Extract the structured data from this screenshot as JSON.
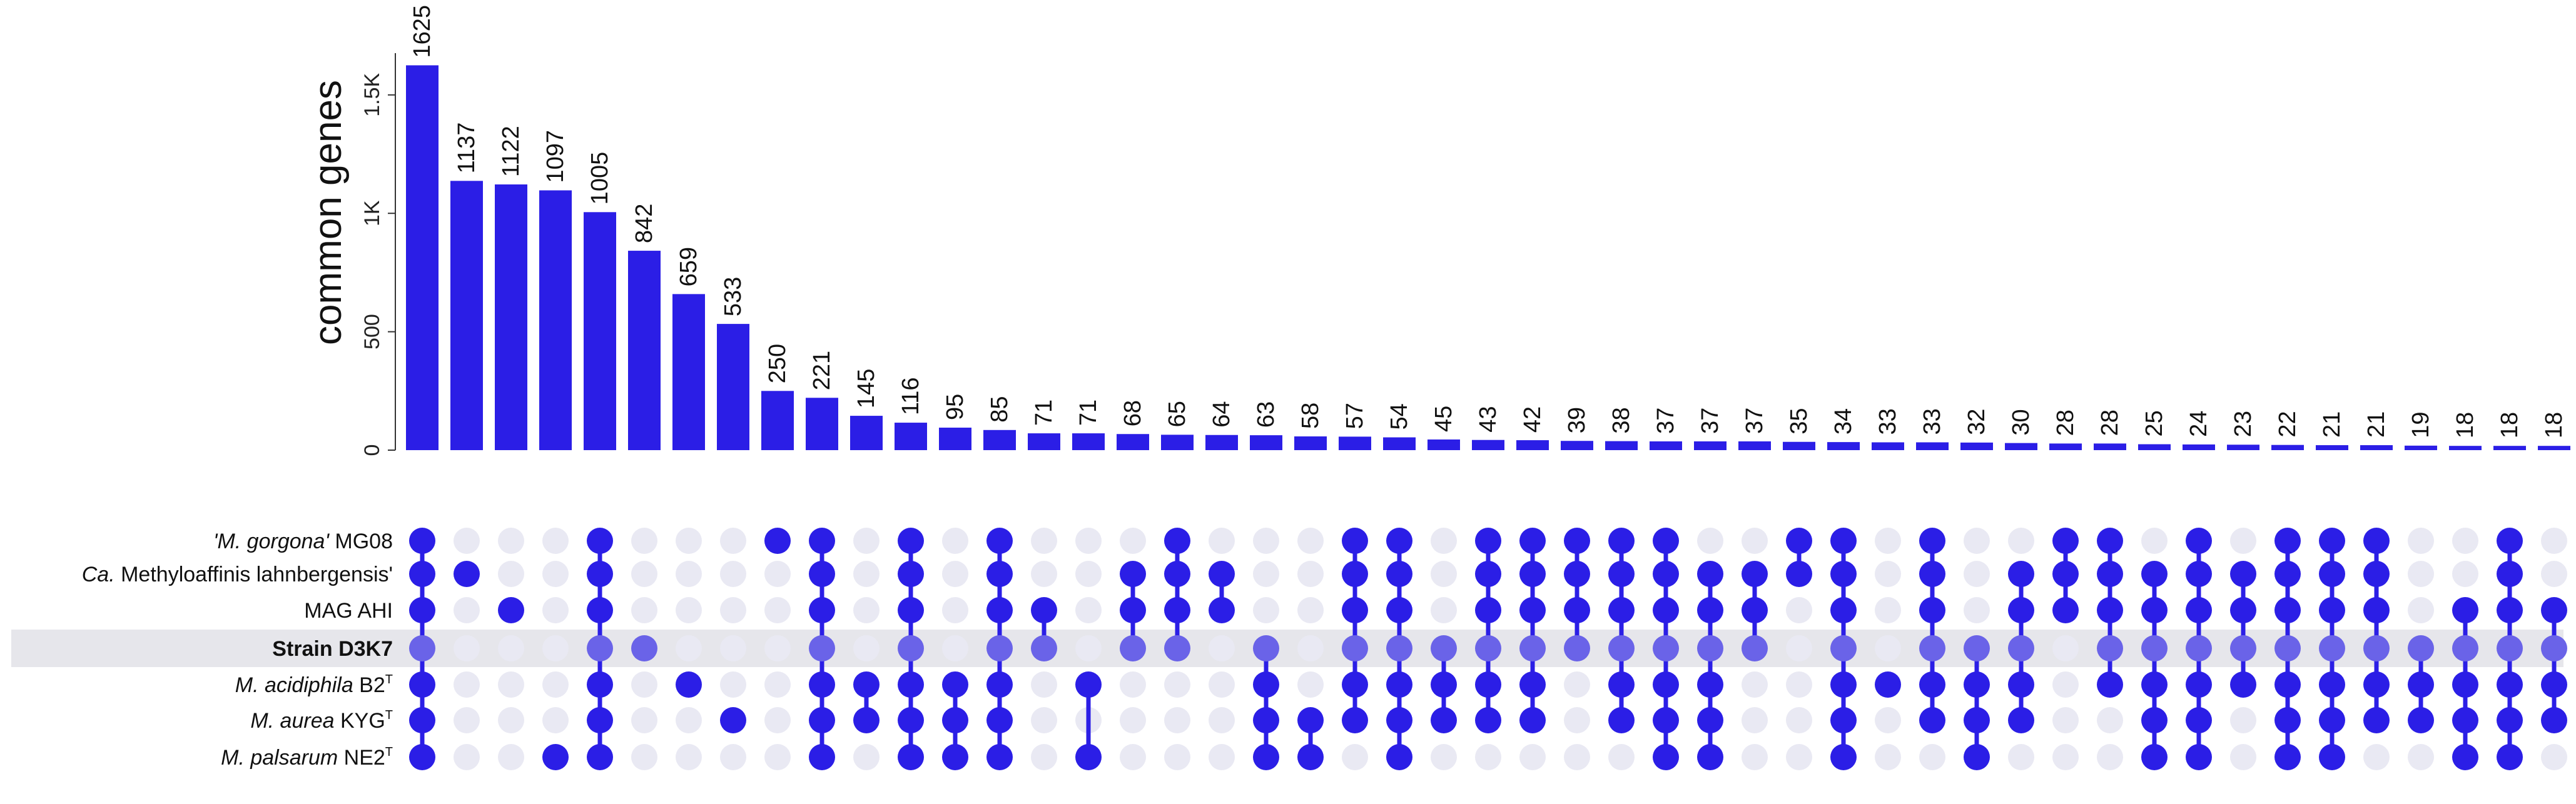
{
  "chart_data": {
    "type": "upset",
    "ylabel": "common genes",
    "ylim": [
      0,
      1650
    ],
    "y_ticks": [
      {
        "value": 0,
        "label": "0"
      },
      {
        "value": 500,
        "label": "500"
      },
      {
        "value": 1000,
        "label": "1K"
      },
      {
        "value": 1500,
        "label": "1.5K"
      }
    ],
    "bar_color": "#2b1ee6",
    "dot_active_color": "#2b1ee6",
    "dot_inactive_color": "#e9e9f3",
    "dot_highlight_active_color": "#6a63e8",
    "highlight_band_color": "#e6e6eb",
    "sets": [
      {
        "name_italic": "'M. gorgona'",
        "name_rest": " MG08",
        "sup": ""
      },
      {
        "name_italic": "Ca.",
        "name_rest": " Methyloaffinis lahnbergensis'",
        "sup": ""
      },
      {
        "name_italic": "",
        "name_rest": "MAG AHI",
        "sup": ""
      },
      {
        "name_italic": "",
        "name_rest": "Strain D3K7",
        "sup": "",
        "bold": true,
        "highlight": true
      },
      {
        "name_italic": "M. acidiphila",
        "name_rest": " B2",
        "sup": "T"
      },
      {
        "name_italic": "M. aurea",
        "name_rest": " KYG",
        "sup": "T"
      },
      {
        "name_italic": "M. palsarum",
        "name_rest": " NE2",
        "sup": "T"
      }
    ],
    "values": [
      1625,
      1137,
      1122,
      1097,
      1005,
      842,
      659,
      533,
      250,
      221,
      145,
      116,
      95,
      85,
      71,
      71,
      68,
      65,
      64,
      63,
      58,
      57,
      54,
      45,
      43,
      42,
      39,
      38,
      37,
      37,
      37,
      35,
      34,
      33,
      33,
      32,
      30,
      28,
      28,
      25,
      24,
      23,
      22,
      21,
      21,
      19,
      18,
      18,
      18
    ],
    "value_labels": [
      "1625",
      "1137",
      "1122",
      "1097",
      "1005",
      "842",
      "659",
      "533",
      "250",
      "221",
      "145",
      "116",
      "95",
      "85",
      "71",
      "71",
      "68",
      "65",
      "64",
      "63",
      "58",
      "57",
      "54",
      "45",
      "43",
      "42",
      "39",
      "38",
      "37",
      "37",
      "37",
      "35",
      "34",
      "33",
      "33",
      "32",
      "30",
      "28",
      "28",
      "25",
      "24",
      "23",
      "22",
      "21",
      "21",
      "19",
      "18",
      "18",
      "18"
    ],
    "intersections": [
      [
        0,
        1,
        2,
        3,
        4,
        5,
        6
      ],
      [
        1
      ],
      [
        2
      ],
      [
        6
      ],
      [
        0,
        1,
        2,
        3,
        4,
        5,
        6
      ],
      [
        3
      ],
      [
        4
      ],
      [
        5
      ],
      [
        0
      ],
      [
        0,
        1,
        2,
        3,
        4,
        5,
        6
      ],
      [
        4,
        5
      ],
      [
        0,
        1,
        2,
        3,
        4,
        5,
        6
      ],
      [
        4,
        5,
        6
      ],
      [
        0,
        1,
        2,
        3,
        4,
        5,
        6
      ],
      [
        2,
        3
      ],
      [
        4,
        6
      ],
      [
        1,
        2,
        3
      ],
      [
        0,
        1,
        2,
        3
      ],
      [
        1,
        2
      ],
      [
        3,
        4,
        5,
        6
      ],
      [
        5,
        6
      ],
      [
        0,
        1,
        2,
        3,
        4,
        5
      ],
      [
        0,
        1,
        2,
        3,
        4,
        5,
        6
      ],
      [
        3,
        4,
        5
      ],
      [
        0,
        1,
        2,
        3,
        4,
        5
      ],
      [
        0,
        1,
        2,
        3,
        4,
        5
      ],
      [
        0,
        1,
        2,
        3
      ],
      [
        0,
        1,
        2,
        3,
        4,
        5
      ],
      [
        0,
        1,
        2,
        3,
        4,
        5,
        6
      ],
      [
        1,
        2,
        3,
        4,
        5,
        6
      ],
      [
        1,
        2,
        3
      ],
      [
        0,
        1
      ],
      [
        0,
        1,
        2,
        3,
        4,
        5,
        6
      ],
      [
        4
      ],
      [
        0,
        1,
        2,
        3,
        4,
        5
      ],
      [
        3,
        4,
        5,
        6
      ],
      [
        1,
        2,
        3,
        4,
        5
      ],
      [
        0,
        1,
        2
      ],
      [
        0,
        1,
        2,
        3,
        4
      ],
      [
        1,
        2,
        3,
        4,
        5,
        6
      ],
      [
        0,
        1,
        2,
        3,
        4,
        5,
        6
      ],
      [
        1,
        2,
        3,
        4
      ],
      [
        0,
        1,
        2,
        3,
        4,
        5,
        6
      ],
      [
        0,
        1,
        2,
        3,
        4,
        5,
        6
      ],
      [
        0,
        1,
        2,
        3,
        4,
        5
      ],
      [
        3,
        4,
        5
      ],
      [
        2,
        3,
        4,
        5,
        6
      ],
      [
        0,
        1,
        2,
        3,
        4,
        5,
        6
      ],
      [
        2,
        3,
        4,
        5
      ]
    ]
  }
}
